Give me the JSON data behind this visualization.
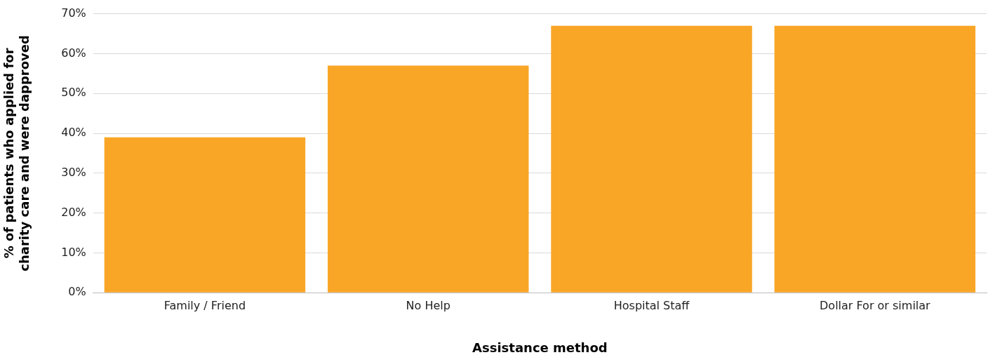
{
  "chart_data": {
    "type": "bar",
    "xlabel": "Assistance method",
    "ylabel": "% of patients who applied for charity care and were dapproved",
    "categories": [
      "Family / Friend",
      "No Help",
      "Hospital Staff",
      "Dollar For or similar"
    ],
    "values": [
      39,
      57,
      67,
      67
    ],
    "color": "#f9a627",
    "ylim": [
      0,
      70
    ],
    "yticks": [
      {
        "value": 0,
        "label": "0%"
      },
      {
        "value": 10,
        "label": "10%"
      },
      {
        "value": 20,
        "label": "20%"
      },
      {
        "value": 30,
        "label": "30%"
      },
      {
        "value": 40,
        "label": "40%"
      },
      {
        "value": 50,
        "label": "50%"
      },
      {
        "value": 60,
        "label": "60%"
      },
      {
        "value": 70,
        "label": "70%"
      }
    ],
    "grid": "y"
  }
}
